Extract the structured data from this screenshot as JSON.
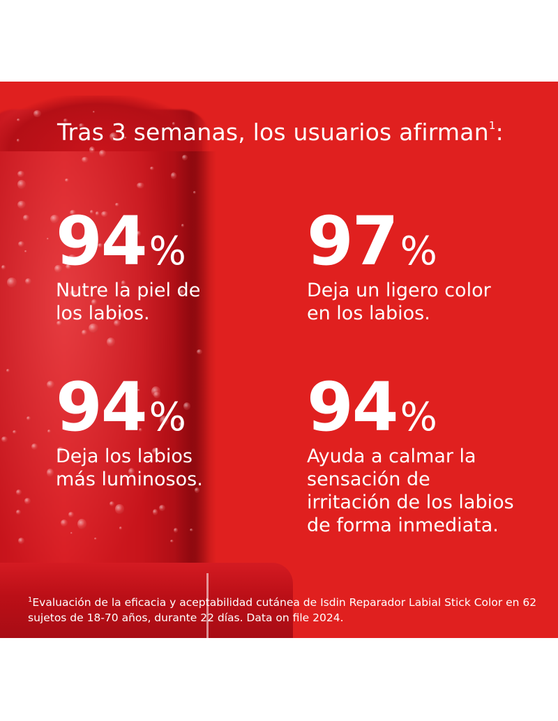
{
  "colors": {
    "panel_red": "#e0201f",
    "text": "#ffffff",
    "background": "#ffffff"
  },
  "headline": {
    "text": "Tras 3 semanas, los usuarios afirman",
    "sup": "1",
    "suffix": ":"
  },
  "stats": [
    {
      "value": "94",
      "unit": "%",
      "description": "Nutre la piel de los labios."
    },
    {
      "value": "97",
      "unit": "%",
      "description": "Deja un ligero color en los labios."
    },
    {
      "value": "94",
      "unit": "%",
      "description": "Deja los labios más luminosos."
    },
    {
      "value": "94",
      "unit": "%",
      "description": "Ayuda a calmar la sensación de irritación de los labios de forma inmediata."
    }
  ],
  "footnote": {
    "sup": "1",
    "text": "Evaluación de la eficacia y aceptabilidad cutánea de Isdin Reparador Labial Stick Color en 62 sujetos de 18-70 años, durante 22 días. Data on file 2024."
  }
}
